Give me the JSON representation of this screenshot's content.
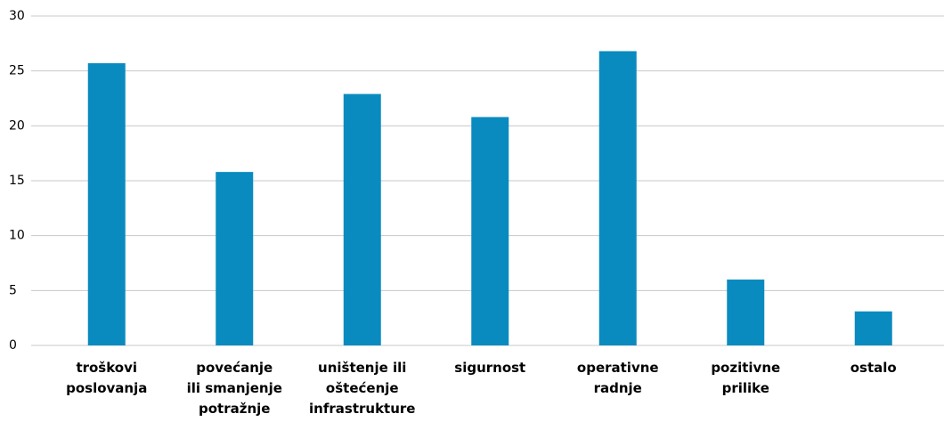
{
  "chart_data": {
    "type": "bar",
    "categories": [
      "troškovi\nposlovanja",
      "povećanje\nili smanjenje\npotražnje",
      "uništenje ili\noštećenje\ninfrastrukture",
      "sigurnost",
      "operativne\nradnje",
      "pozitivne\nprilike",
      "ostalo"
    ],
    "values": [
      25.7,
      15.8,
      22.9,
      20.8,
      26.8,
      6,
      3.1
    ],
    "color": "#0a8bbf",
    "ylim": [
      0,
      30
    ],
    "yticks": [
      0,
      5,
      10,
      15,
      20,
      25,
      30
    ],
    "grid": true
  }
}
